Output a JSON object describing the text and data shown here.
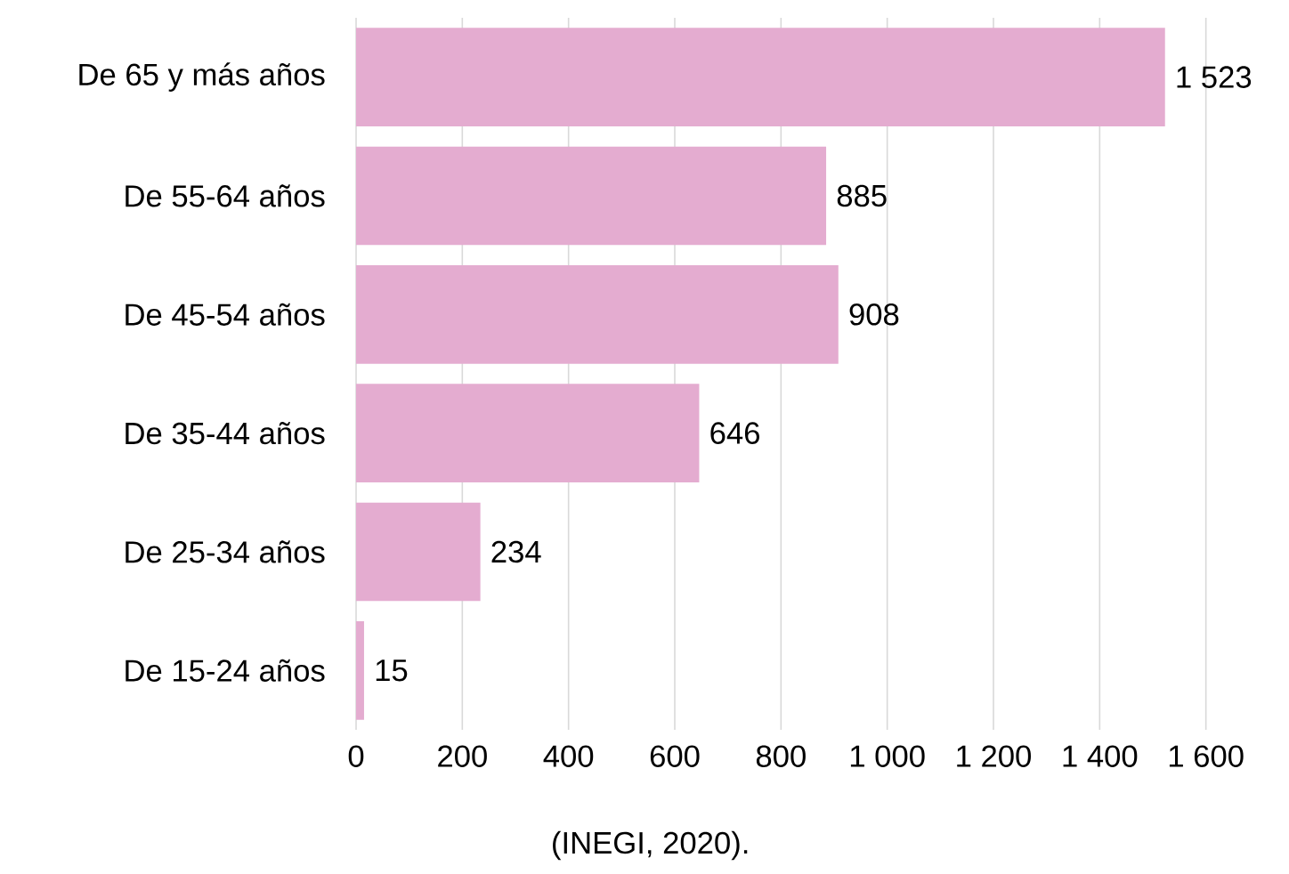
{
  "chart_data": {
    "type": "bar",
    "orientation": "horizontal",
    "categories": [
      "De 65 y más años",
      "De 55-64 años",
      "De 45-54 años",
      "De 35-44 años",
      "De 25-34 años",
      "De 15-24 años"
    ],
    "values": [
      1523,
      885,
      908,
      646,
      234,
      15
    ],
    "value_labels": [
      "1 523",
      "885",
      "908",
      "646",
      "234",
      "15"
    ],
    "color": "#e4acd0",
    "xlim": [
      0,
      1600
    ],
    "xticks": [
      0,
      200,
      400,
      600,
      800,
      {
        "value": 1000,
        "label": "1 000"
      },
      {
        "value": 1200,
        "label": "1 200"
      },
      {
        "value": 1400,
        "label": "1 400"
      },
      {
        "value": 1600,
        "label": "1 600"
      }
    ],
    "grid": "x",
    "annotations": [
      "(INEGI, 2020)."
    ]
  }
}
